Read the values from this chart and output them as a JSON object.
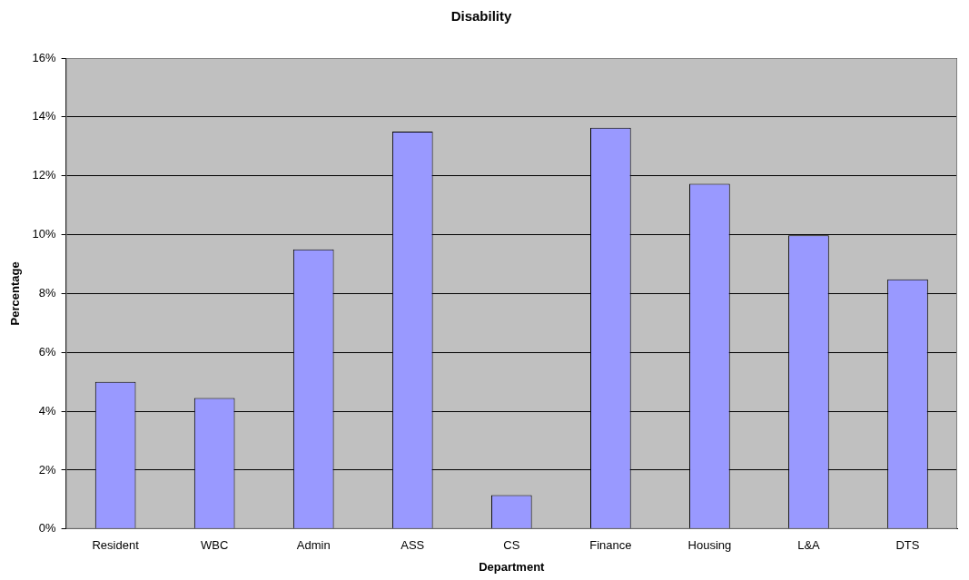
{
  "chart_data": {
    "type": "bar",
    "title": "Disability",
    "xlabel": "Department",
    "ylabel": "Percentage",
    "categories": [
      "Resident",
      "WBC",
      "Admin",
      "ASS",
      "CS",
      "Finance",
      "Housing",
      "L&A",
      "DTS"
    ],
    "values": [
      5.0,
      4.45,
      9.5,
      13.5,
      1.15,
      13.63,
      11.73,
      9.98,
      8.48
    ],
    "color": "#9999ff",
    "ylim": [
      0,
      16
    ],
    "yticks": [
      {
        "value": 0,
        "label": "0%"
      },
      {
        "value": 2,
        "label": "2%"
      },
      {
        "value": 4,
        "label": "4%"
      },
      {
        "value": 6,
        "label": "6%"
      },
      {
        "value": 8,
        "label": "8%"
      },
      {
        "value": 10,
        "label": "10%"
      },
      {
        "value": 12,
        "label": "12%"
      },
      {
        "value": 14,
        "label": "14%"
      },
      {
        "value": 16,
        "label": "16%"
      }
    ],
    "grid": "y",
    "legend": false
  }
}
